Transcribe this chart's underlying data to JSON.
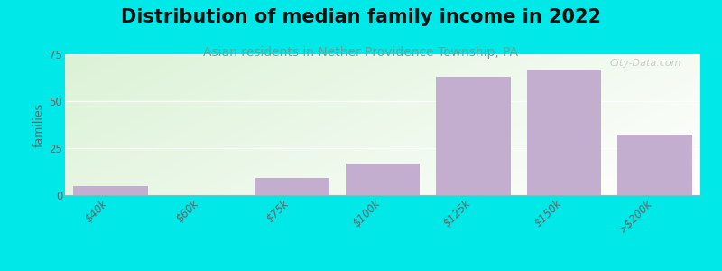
{
  "title": "Distribution of median family income in 2022",
  "subtitle": "Asian residents in Nether Providence Township, PA",
  "categories": [
    "$40k",
    "$60k",
    "$75k",
    "$100k",
    "$125k",
    "$150k",
    ">$200k"
  ],
  "values": [
    5,
    0,
    9,
    17,
    63,
    67,
    32
  ],
  "bar_color": "#c4aed0",
  "ylabel": "families",
  "ylim": [
    0,
    75
  ],
  "yticks": [
    0,
    25,
    50,
    75
  ],
  "background_color": "#00e8e8",
  "grid_color": "#e0e0e0",
  "title_fontsize": 15,
  "subtitle_fontsize": 10,
  "subtitle_color": "#5ba8a0",
  "watermark": "City-Data.com"
}
